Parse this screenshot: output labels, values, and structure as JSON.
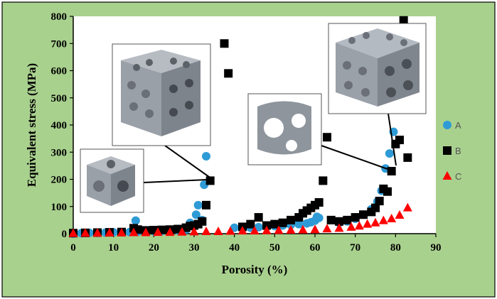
{
  "chart_data": {
    "type": "scatter",
    "xlabel": "Porosity (%)",
    "ylabel": "Equivalent stress (MPa)",
    "xlim": [
      0,
      90
    ],
    "ylim": [
      0,
      800
    ],
    "xticks": [
      0,
      10,
      20,
      30,
      40,
      50,
      60,
      70,
      80,
      90
    ],
    "yticks": [
      0,
      100,
      200,
      300,
      400,
      500,
      600,
      700,
      800
    ],
    "grid": false,
    "legend_position": "right",
    "background": "#a9d18e",
    "plot_background": "#ffffff",
    "series": [
      {
        "name": "A",
        "marker": "circle",
        "color": "#2e9bd6",
        "points": [
          [
            0,
            0
          ],
          [
            2,
            2
          ],
          [
            4,
            3
          ],
          [
            6,
            3
          ],
          [
            8,
            4
          ],
          [
            10,
            5
          ],
          [
            12,
            5
          ],
          [
            14,
            6
          ],
          [
            15.5,
            48
          ],
          [
            16,
            7
          ],
          [
            18,
            8
          ],
          [
            20,
            9
          ],
          [
            22,
            10
          ],
          [
            24,
            11
          ],
          [
            26,
            12
          ],
          [
            28,
            15
          ],
          [
            29,
            40
          ],
          [
            30,
            28
          ],
          [
            30.5,
            70
          ],
          [
            31,
            105
          ],
          [
            32,
            50
          ],
          [
            32.5,
            180
          ],
          [
            33,
            285
          ],
          [
            40,
            22
          ],
          [
            42,
            20
          ],
          [
            44,
            22
          ],
          [
            46,
            24
          ],
          [
            48,
            26
          ],
          [
            50,
            28
          ],
          [
            52,
            30
          ],
          [
            54,
            32
          ],
          [
            56,
            35
          ],
          [
            58,
            38
          ],
          [
            59,
            42
          ],
          [
            60,
            48
          ],
          [
            60.5,
            62
          ],
          [
            61,
            58
          ],
          [
            66,
            40
          ],
          [
            68,
            45
          ],
          [
            70,
            55
          ],
          [
            72,
            70
          ],
          [
            74,
            90
          ],
          [
            75.5,
            118
          ],
          [
            76.5,
            158
          ],
          [
            77.5,
            240
          ],
          [
            78.5,
            295
          ],
          [
            79.5,
            375
          ]
        ]
      },
      {
        "name": "B",
        "marker": "square",
        "color": "#000000",
        "points": [
          [
            0,
            2
          ],
          [
            3,
            3
          ],
          [
            6,
            4
          ],
          [
            9,
            5
          ],
          [
            12,
            6
          ],
          [
            15,
            20
          ],
          [
            16,
            15
          ],
          [
            18,
            12
          ],
          [
            20,
            13
          ],
          [
            22,
            14
          ],
          [
            24,
            15
          ],
          [
            26,
            17
          ],
          [
            28,
            22
          ],
          [
            29,
            28
          ],
          [
            30,
            30
          ],
          [
            31,
            35
          ],
          [
            32,
            45
          ],
          [
            33,
            105
          ],
          [
            34,
            195
          ],
          [
            37.5,
            700
          ],
          [
            38.5,
            590
          ],
          [
            42,
            25
          ],
          [
            44,
            35
          ],
          [
            46,
            60
          ],
          [
            48,
            30
          ],
          [
            50,
            35
          ],
          [
            52,
            40
          ],
          [
            54,
            50
          ],
          [
            56,
            60
          ],
          [
            57,
            75
          ],
          [
            58,
            85
          ],
          [
            59,
            95
          ],
          [
            60,
            105
          ],
          [
            61,
            115
          ],
          [
            62,
            195
          ],
          [
            63,
            355
          ],
          [
            64,
            50
          ],
          [
            66,
            45
          ],
          [
            68,
            50
          ],
          [
            70,
            60
          ],
          [
            72,
            70
          ],
          [
            74,
            80
          ],
          [
            75,
            95
          ],
          [
            76,
            120
          ],
          [
            77,
            165
          ],
          [
            78,
            155
          ],
          [
            79,
            230
          ],
          [
            80,
            330
          ],
          [
            81,
            345
          ],
          [
            82,
            785
          ],
          [
            83,
            280
          ]
        ]
      },
      {
        "name": "C",
        "marker": "triangle",
        "color": "#ff0000",
        "points": [
          [
            0,
            1
          ],
          [
            3,
            2
          ],
          [
            6,
            2
          ],
          [
            9,
            3
          ],
          [
            12,
            3
          ],
          [
            15,
            4
          ],
          [
            18,
            4
          ],
          [
            21,
            5
          ],
          [
            24,
            5
          ],
          [
            27,
            6
          ],
          [
            30,
            7
          ],
          [
            33,
            8
          ],
          [
            36,
            8
          ],
          [
            39,
            9
          ],
          [
            42,
            10
          ],
          [
            45,
            10
          ],
          [
            48,
            11
          ],
          [
            51,
            12
          ],
          [
            54,
            13
          ],
          [
            57,
            14
          ],
          [
            60,
            15
          ],
          [
            63,
            18
          ],
          [
            66,
            20
          ],
          [
            69,
            24
          ],
          [
            71,
            28
          ],
          [
            73,
            35
          ],
          [
            75,
            40
          ],
          [
            77,
            48
          ],
          [
            79,
            55
          ],
          [
            81,
            68
          ],
          [
            83,
            95
          ]
        ]
      }
    ]
  }
}
